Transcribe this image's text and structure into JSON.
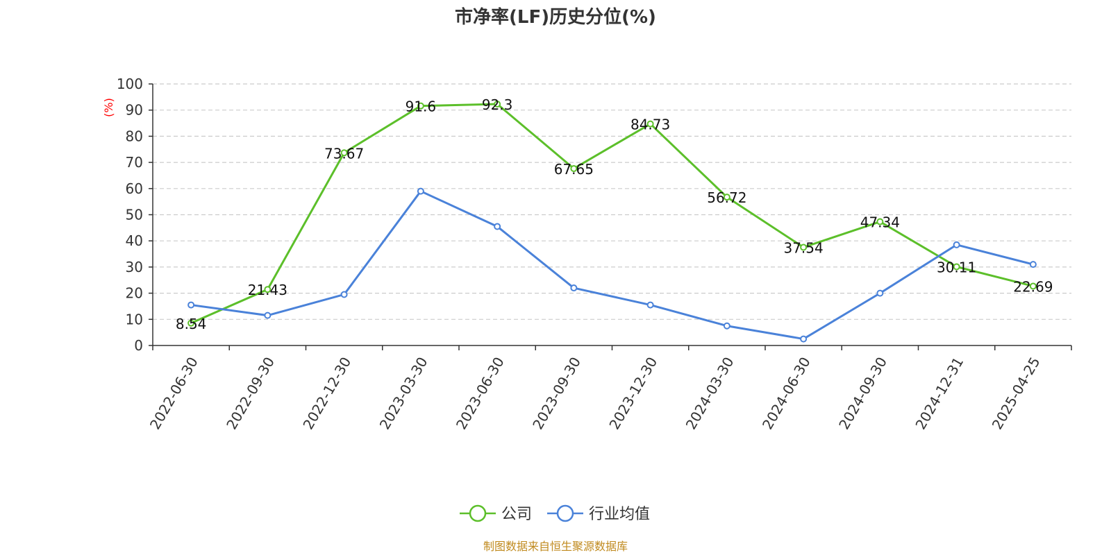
{
  "chart_data": {
    "type": "line",
    "title": "市净率(LF)历史分位(%)",
    "y_unit": "(%)",
    "categories": [
      "2022-06-30",
      "2022-09-30",
      "2022-12-30",
      "2023-03-30",
      "2023-06-30",
      "2023-09-30",
      "2023-12-30",
      "2024-03-30",
      "2024-06-30",
      "2024-09-30",
      "2024-12-31",
      "2025-04-25"
    ],
    "ylim": [
      0,
      100
    ],
    "yticks": [
      "0",
      "10",
      "20",
      "30",
      "40",
      "50",
      "60",
      "70",
      "80",
      "90",
      "100"
    ],
    "grid": true,
    "legend_position": "bottom-center",
    "series": [
      {
        "name": "公司",
        "color": "#5cbf2a",
        "show_labels": true,
        "values": [
          8.54,
          21.43,
          73.67,
          91.6,
          92.3,
          67.65,
          84.73,
          56.72,
          37.54,
          47.34,
          30.11,
          22.69
        ]
      },
      {
        "name": "行业均值",
        "color": "#4a82d9",
        "show_labels": false,
        "values": [
          15.5,
          11.5,
          19.5,
          59,
          45.5,
          22,
          15.5,
          7.5,
          2.5,
          20,
          38.5,
          31
        ]
      }
    ]
  },
  "source": "制图数据来自恒生聚源数据库"
}
